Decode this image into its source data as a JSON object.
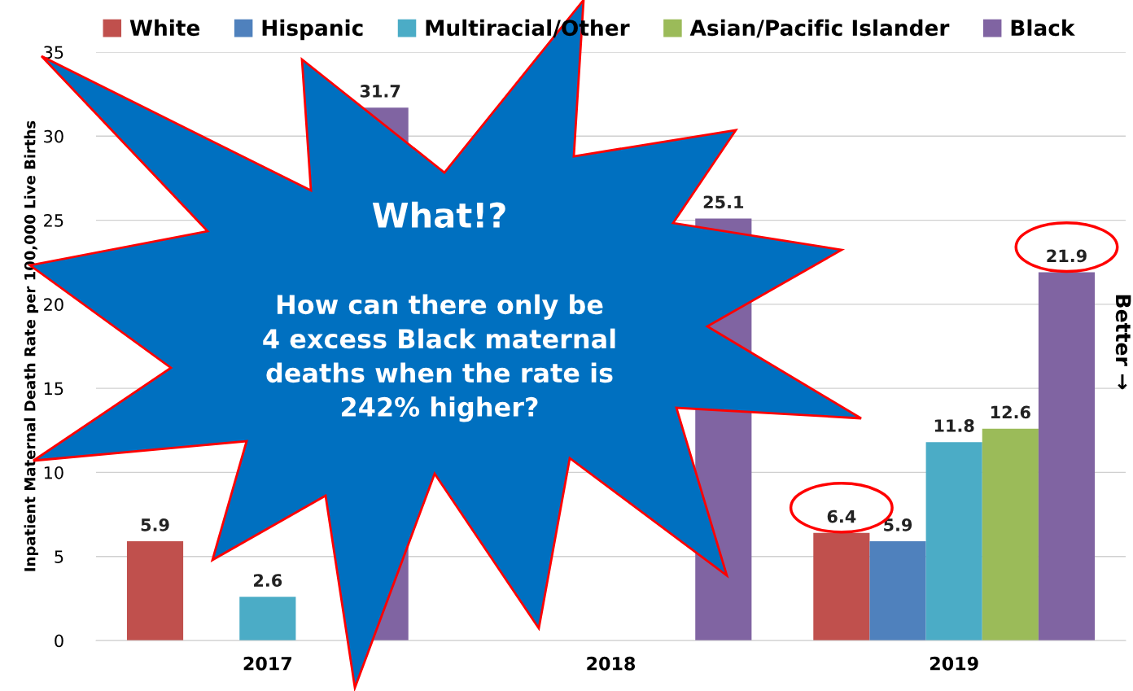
{
  "chart_data": {
    "type": "bar",
    "ylabel": "Inpatient Maternal Death Rate per 100,000 Live Births",
    "categories": [
      "2017",
      "2018",
      "2019"
    ],
    "series": [
      {
        "name": "White",
        "color": "#c0504d",
        "values": [
          5.9,
          null,
          6.4
        ],
        "value_labels": [
          "5.9",
          null,
          "6.4"
        ]
      },
      {
        "name": "Hispanic",
        "color": "#4f81bd",
        "values": [
          null,
          null,
          5.9
        ],
        "value_labels": [
          null,
          null,
          "5.9"
        ]
      },
      {
        "name": "Multiracial/Other",
        "color": "#4bacc6",
        "values": [
          2.6,
          null,
          11.8
        ],
        "value_labels": [
          "2.6",
          null,
          "11.8"
        ]
      },
      {
        "name": "Asian/Pacific Islander",
        "color": "#9bbb59",
        "values": [
          null,
          null,
          12.6
        ],
        "value_labels": [
          null,
          null,
          "12.6"
        ]
      },
      {
        "name": "Black",
        "color": "#8064a2",
        "values": [
          31.7,
          25.1,
          21.9
        ],
        "value_labels": [
          "31.7",
          "25.1",
          "21.9"
        ]
      }
    ],
    "ylim": [
      0,
      35
    ],
    "yticks": [
      0,
      5,
      10,
      15,
      20,
      25,
      30,
      35
    ],
    "grid": "y",
    "legend": "top",
    "annotations": [
      "What!?\nHow can there only be\n4 excess Black maternal\ndeaths when the rate is\n242% higher?",
      "Better →"
    ]
  }
}
